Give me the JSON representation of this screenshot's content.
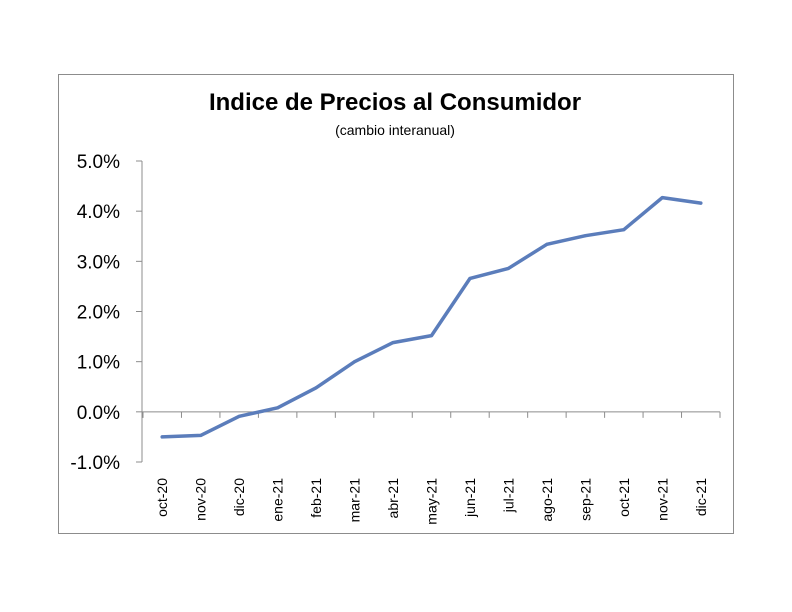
{
  "chart_data": {
    "type": "line",
    "title": "Indice de Precios al Consumidor",
    "subtitle": "(cambio interanual)",
    "xlabel": "",
    "ylabel": "",
    "categories": [
      "oct-20",
      "nov-20",
      "dic-20",
      "ene-21",
      "feb-21",
      "mar-21",
      "abr-21",
      "may-21",
      "jun-21",
      "jul-21",
      "ago-21",
      "sep-21",
      "oct-21",
      "nov-21",
      "dic-21"
    ],
    "series": [
      {
        "values": [
          -0.5,
          -0.47,
          -0.09,
          0.08,
          0.48,
          1.0,
          1.38,
          1.52,
          2.66,
          2.86,
          3.34,
          3.51,
          3.63,
          4.27,
          4.16
        ]
      }
    ],
    "ylim": [
      -1.0,
      5.0
    ],
    "yticks": [
      5.0,
      4.0,
      3.0,
      2.0,
      1.0,
      0.0,
      -1.0
    ],
    "ytick_labels": [
      "5.0%",
      "4.0%",
      "3.0%",
      "2.0%",
      "1.0%",
      "0.0%",
      "-1.0%"
    ],
    "grid": false,
    "legend": "none",
    "colors": {
      "line": "#5b7dbb",
      "axis": "#8c8c8c",
      "border": "#8c8c8c"
    }
  }
}
